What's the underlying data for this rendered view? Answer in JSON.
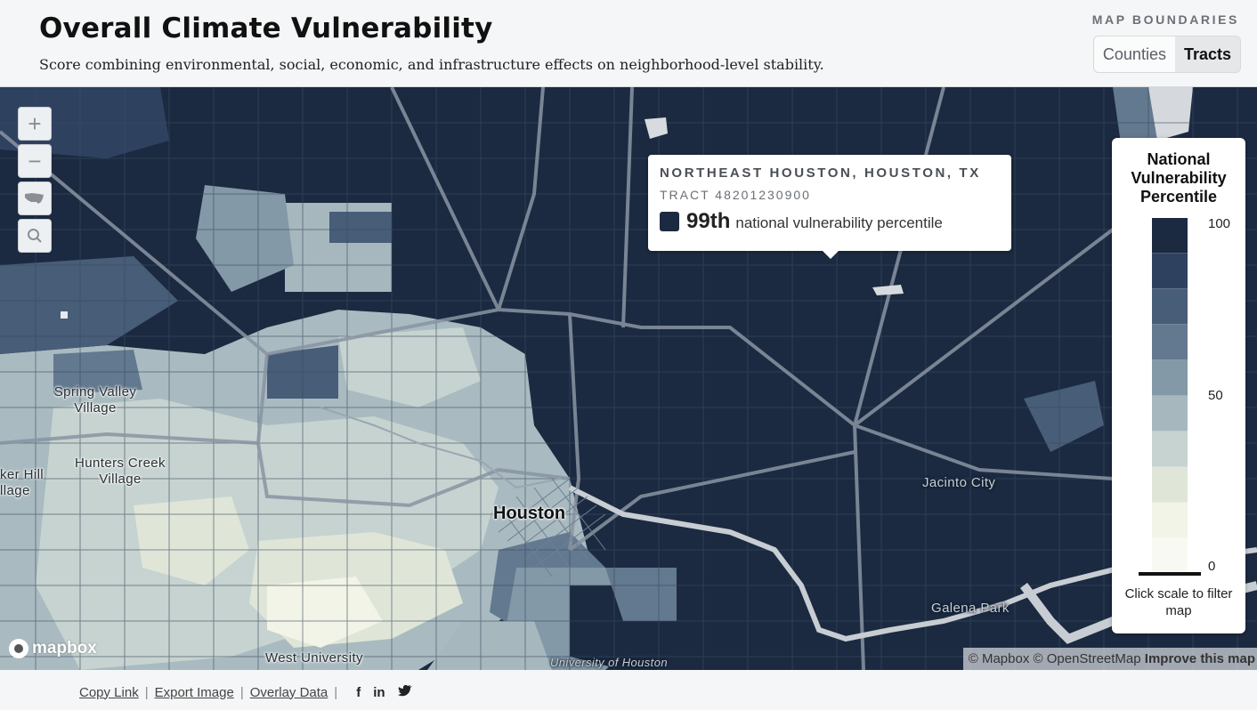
{
  "header": {
    "title": "Overall Climate Vulnerability",
    "subtitle": "Score combining environmental, social, economic, and infrastructure effects on neighborhood-level stability."
  },
  "boundaries": {
    "label": "MAP BOUNDARIES",
    "options": [
      "Counties",
      "Tracts"
    ],
    "selected": "Tracts"
  },
  "controls": [
    "zoom-in",
    "zoom-out",
    "reset-usa",
    "search"
  ],
  "tooltip": {
    "location": "NORTHEAST HOUSTON, HOUSTON, TX",
    "tract": "TRACT 48201230900",
    "percentile": "99th",
    "description": "national vulnerability percentile"
  },
  "legend": {
    "title": "National Vulnerability Percentile",
    "tick_top": "100",
    "tick_mid": "50",
    "tick_bottom": "0",
    "note": "Click scale to filter map",
    "bins": [
      "#1b2a40",
      "#2e4260",
      "#475d78",
      "#63798f",
      "#8399a7",
      "#a6b8be",
      "#c6d3d0",
      "#dfe6d8",
      "#f1f4e6",
      "#f8f9f3"
    ]
  },
  "places": {
    "spring_valley": "Spring Valley Village",
    "hunters_creek": "Hunters Creek Village",
    "bunker_hill": "ker Hill llage",
    "houston": "Houston",
    "jacinto_city": "Jacinto City",
    "galena_park": "Galena Park",
    "west_university": "West University",
    "university_houston": "University of Houston"
  },
  "map": {
    "logo": "mapbox",
    "attribution": "© Mapbox © OpenStreetMap",
    "improve": "Improve this map"
  },
  "footer": {
    "copy_link": "Copy Link",
    "export_image": "Export Image",
    "overlay_data": "Overlay Data",
    "social": [
      "facebook-icon",
      "linkedin-icon",
      "twitter-icon"
    ]
  }
}
